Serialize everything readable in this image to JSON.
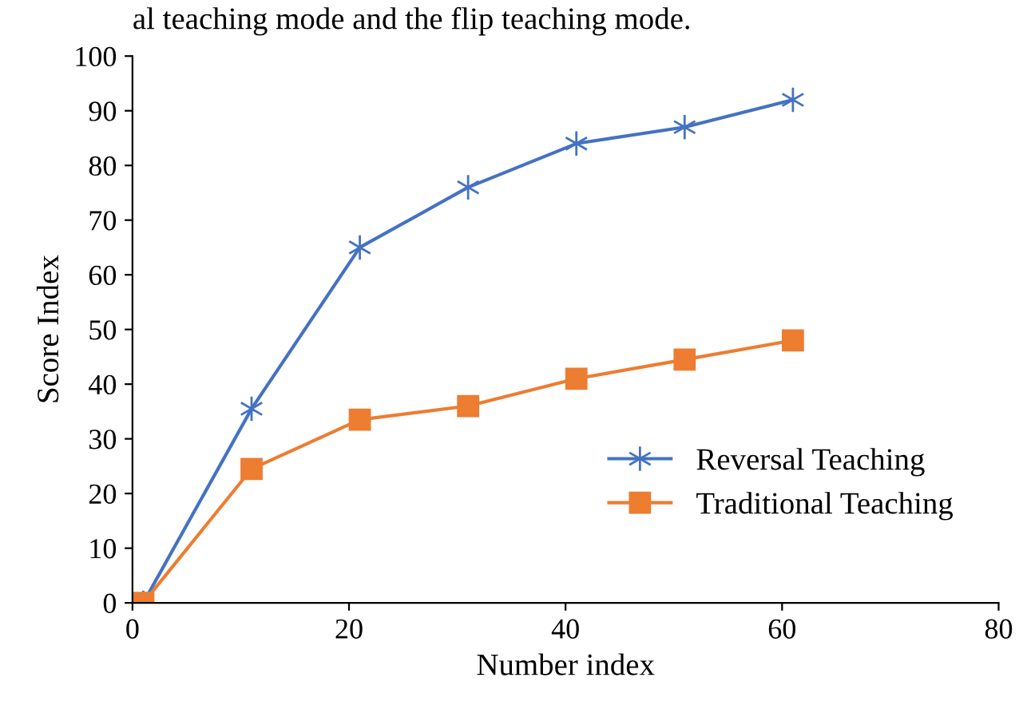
{
  "chart_data": {
    "type": "line",
    "xlabel": "Number index",
    "ylabel": "Score Index",
    "annotations": [
      "al teaching mode and the flip teaching mode."
    ],
    "x": [
      1,
      11,
      21,
      31,
      41,
      51,
      61
    ],
    "series": [
      {
        "name": "Reversal Teaching",
        "color": "#4472c4",
        "marker": "cross",
        "values": [
          0,
          35.5,
          65,
          76,
          84,
          87,
          92
        ]
      },
      {
        "name": "Traditional Teaching",
        "color": "#ed7d31",
        "marker": "square",
        "values": [
          0,
          24.5,
          33.5,
          36,
          41,
          44.5,
          48
        ]
      }
    ],
    "xlim": [
      0,
      80
    ],
    "xticks": [
      0,
      20,
      40,
      60,
      80
    ],
    "ylim": [
      0,
      100
    ],
    "yticks": [
      0,
      10,
      20,
      30,
      40,
      50,
      60,
      70,
      80,
      90,
      100
    ],
    "grid": false,
    "legend": "bottom right",
    "line_style": "solid"
  }
}
